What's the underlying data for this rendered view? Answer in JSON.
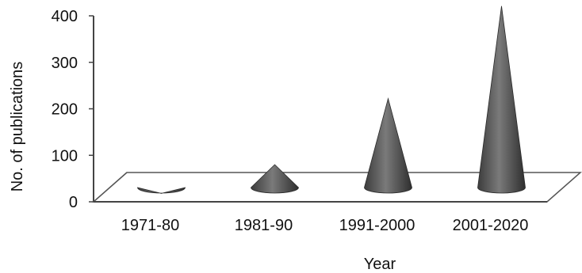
{
  "chart_data": {
    "type": "bar",
    "style": "3d-cone",
    "categories": [
      "1971-80",
      "1981-90",
      "1991-2000",
      "2001-2020"
    ],
    "values": [
      18,
      80,
      222,
      421
    ],
    "title": "",
    "xlabel": "Year",
    "ylabel": "No. of publications",
    "ylim": [
      0,
      400
    ],
    "yticks": [
      "0",
      "100",
      "200",
      "300",
      "400"
    ],
    "grid": false,
    "legend": "none",
    "colors": {
      "cone": "#5a5a5a",
      "axis": "#555555",
      "floor": "#ffffff"
    }
  }
}
